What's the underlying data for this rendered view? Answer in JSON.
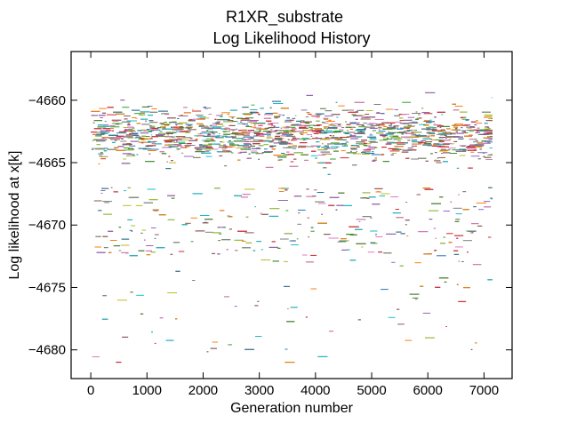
{
  "chart_data": {
    "type": "scatter",
    "title": "R1XR_substrate",
    "subtitle": "Log Likelihood History",
    "xlabel": "Generation number",
    "ylabel": "Log likelihood at x[k]",
    "xlim": [
      -350,
      7500
    ],
    "ylim": [
      -4682.3,
      -4656.1
    ],
    "xticks": [
      0,
      1000,
      2000,
      3000,
      4000,
      5000,
      6000,
      7000
    ],
    "yticks": [
      -4660,
      -4665,
      -4670,
      -4675,
      -4680
    ],
    "x_range": [
      0,
      7150
    ],
    "y_band": {
      "dense_top": -4658.3,
      "dense_core_center": -4662.7,
      "dense_bottom": -4667.0,
      "sparse_bottom": -4681.0
    },
    "grid": false,
    "legend": "none",
    "series_colors": [
      "#1f77b4",
      "#ff7f0e",
      "#2ca02c",
      "#d62728",
      "#9467bd",
      "#8c564b",
      "#e377c2",
      "#7f7f7f",
      "#bcbd22",
      "#17becf"
    ]
  }
}
